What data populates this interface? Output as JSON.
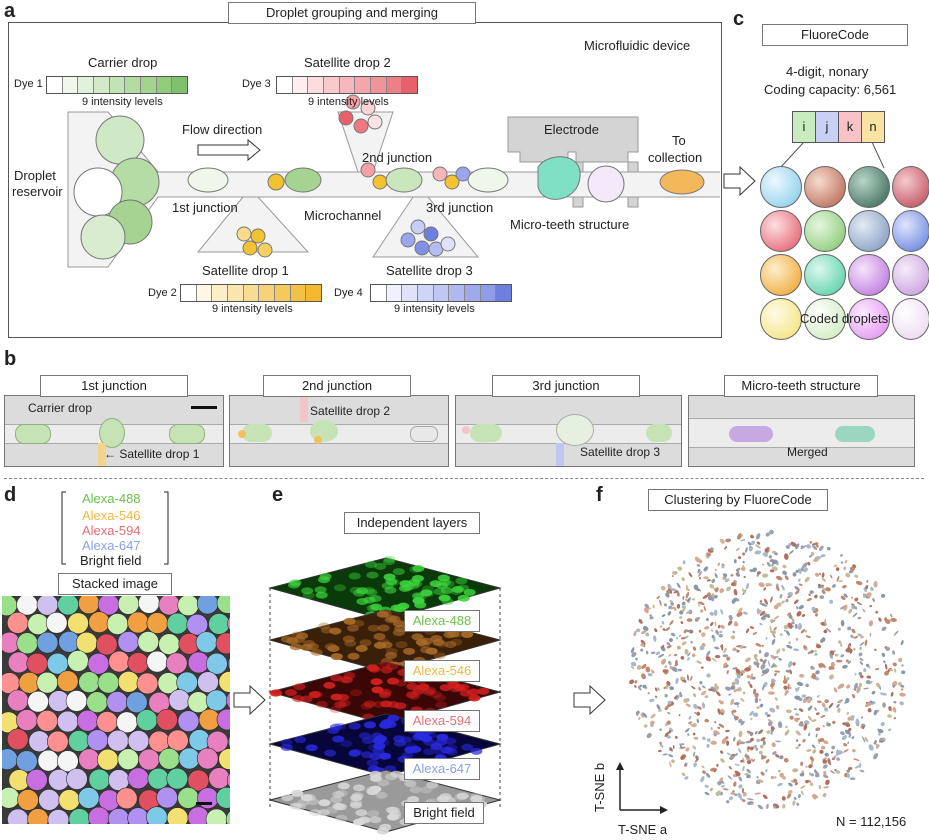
{
  "panel_a": {
    "letter": "a",
    "title": "Droplet grouping and merging",
    "device_label": "Microfluidic device",
    "carrier_drop": "Carrier drop",
    "dye1": "Dye 1",
    "dye2": "Dye 2",
    "dye3": "Dye 3",
    "dye4": "Dye 4",
    "intensity_levels": "9 intensity levels",
    "satellite_drop_1": "Satellite drop 1",
    "satellite_drop_2": "Satellite drop 2",
    "satellite_drop_3": "Satellite drop 3",
    "flow_direction": "Flow direction",
    "droplet_reservoir_1": "Droplet",
    "droplet_reservoir_2": "reservoir",
    "junction_1": "1st junction",
    "junction_2": "2nd junction",
    "junction_3": "3rd junction",
    "microchannel": "Microchannel",
    "electrode": "Electrode",
    "micro_teeth": "Micro-teeth structure",
    "to_collection_1": "To",
    "to_collection_2": "collection",
    "colors": {
      "green": "#7fc26b",
      "yellow": "#f2c230",
      "red": "#e8606a",
      "blue": "#6f7fe0"
    }
  },
  "panel_b": {
    "letter": "b",
    "tabs": [
      "1st junction",
      "2nd junction",
      "3rd junction",
      "Micro-teeth structure"
    ],
    "carrier_drop": "Carrier drop",
    "satellite_drop_1": "← Satellite drop 1",
    "satellite_drop_2": "Satellite drop 2",
    "satellite_drop_3": "Satellite drop 3",
    "merged": "Merged"
  },
  "panel_c": {
    "letter": "c",
    "title": "FluoreCode",
    "line1": "4-digit, nonary",
    "line2": "Coding capacity: 6,561",
    "digits": [
      "i",
      "j",
      "k",
      "n"
    ],
    "footer": "Coded droplets"
  },
  "panel_d": {
    "letter": "d",
    "legend": [
      "Alexa-488",
      "Alexa-546",
      "Alexa-594",
      "Alexa-647",
      "Bright field"
    ],
    "legend_colors": [
      "#6cc24a",
      "#f2b840",
      "#e8707a",
      "#8aa0e8",
      "#222222"
    ],
    "stacked_label": "Stacked image"
  },
  "panel_e": {
    "letter": "e",
    "title": "Independent layers",
    "layers": [
      "Alexa-488",
      "Alexa-546",
      "Alexa-594",
      "Alexa-647",
      "Bright field"
    ]
  },
  "panel_f": {
    "letter": "f",
    "title": "Clustering by FluoreCode",
    "axis_x": "T-SNE a",
    "axis_y": "T-SNE b",
    "n_label": "N = 112,156"
  }
}
